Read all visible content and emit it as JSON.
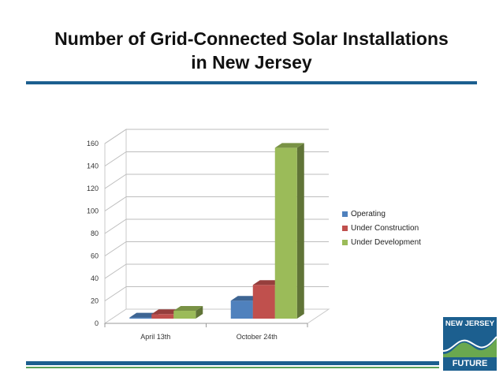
{
  "slide": {
    "title_line1": "Number of Grid-Connected Solar Installations",
    "title_line2": "in New Jersey"
  },
  "logo": {
    "line1": "NEW JERSEY",
    "line2": "FUTURE",
    "colors": {
      "blue": "#1c5f8f",
      "green": "#6aa84f"
    }
  },
  "chart_data": {
    "type": "bar",
    "title": "",
    "xlabel": "",
    "ylabel": "",
    "categories": [
      "April 13th",
      "October 24th"
    ],
    "series": [
      {
        "name": "Operating",
        "color": "#4f81bd",
        "values": [
          1,
          16
        ]
      },
      {
        "name": "Under Construction",
        "color": "#c0504d",
        "values": [
          4,
          30
        ]
      },
      {
        "name": "Under Development",
        "color": "#9bbb59",
        "values": [
          7,
          152
        ]
      }
    ],
    "ylim": [
      0,
      160
    ],
    "yticks": [
      0,
      20,
      40,
      60,
      80,
      100,
      120,
      140,
      160
    ],
    "grid": true,
    "legend_position": "right",
    "style": "3d-bar"
  }
}
